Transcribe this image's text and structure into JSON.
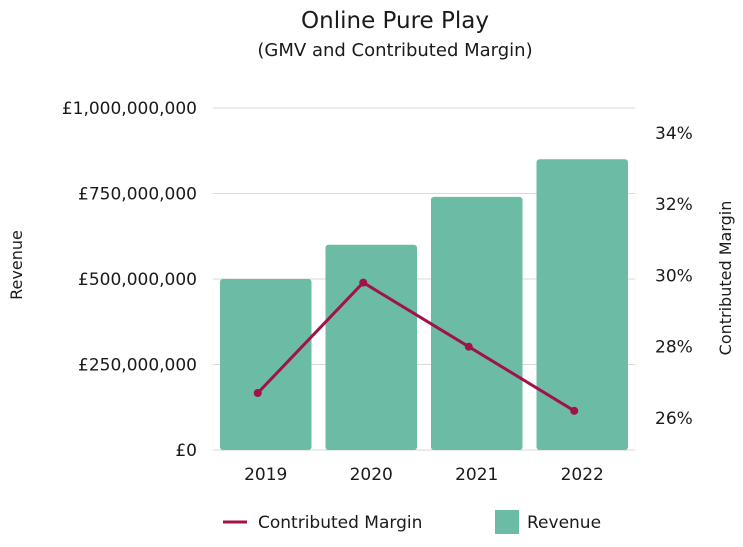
{
  "chart_data": {
    "type": "bar",
    "title": "Online Pure Play",
    "subtitle": "(GMV and Contributed Margin)",
    "categories": [
      "2019",
      "2020",
      "2021",
      "2022"
    ],
    "series": [
      {
        "name": "Revenue",
        "type": "bar",
        "axis": "left",
        "values": [
          500000000,
          600000000,
          740000000,
          850000000
        ]
      },
      {
        "name": "Contributed Margin",
        "type": "line",
        "axis": "right",
        "values": [
          26.7,
          29.8,
          28.0,
          26.2
        ]
      }
    ],
    "ylabel": "Revenue",
    "y2label": "Contributed Margin",
    "ylim": [
      0,
      1000000000
    ],
    "y2lim": [
      25.1,
      34.7
    ],
    "yticks": [
      "£0",
      "£250,000,000",
      "£500,000,000",
      "£750,000,000",
      "£1,000,000,000"
    ],
    "yticks_values": [
      0,
      250000000,
      500000000,
      750000000,
      1000000000
    ],
    "y2ticks": [
      "26%",
      "28%",
      "30%",
      "32%",
      "34%"
    ],
    "y2ticks_values": [
      26,
      28,
      30,
      32,
      34
    ],
    "grid": true,
    "legend": "bottom",
    "colors": {
      "bar": "#6bbba5",
      "line": "#a0124a",
      "grid": "#d9d9d9"
    }
  }
}
